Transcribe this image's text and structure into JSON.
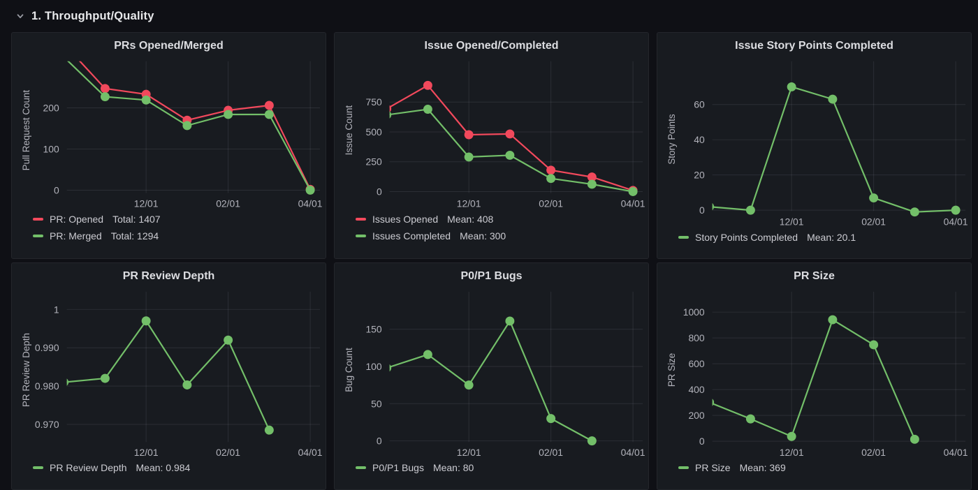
{
  "header": {
    "title": "1. Throughput/Quality",
    "collapse_icon": "chevron-down"
  },
  "colors": {
    "page_bg": "#0f1015",
    "panel_bg": "#181b20",
    "panel_border": "#24262c",
    "grid": "rgba(204,204,220,0.11)",
    "tick_text": "#b2b3bb",
    "axis_label": "#b2b3bb",
    "title_text": "#dcdde1",
    "legend_text": "#ccccd2",
    "header_text": "#e8e9eb",
    "red": "#F2495C",
    "green": "#73BF69"
  },
  "chart_data": [
    {
      "type": "line",
      "title": "PRs Opened/Merged",
      "ylabel": "Pull Request Count",
      "x_unit": "months_since_10_01",
      "x_ticks": [
        {
          "t": 2,
          "label": "12/01"
        },
        {
          "t": 4,
          "label": "02/01"
        },
        {
          "t": 6,
          "label": "04/01"
        }
      ],
      "y_ticks": [
        {
          "v": 0,
          "label": "0"
        },
        {
          "v": 100,
          "label": "100"
        },
        {
          "v": 200,
          "label": "200"
        }
      ],
      "y_range": [
        -7,
        298
      ],
      "legend_position": "bottom-left",
      "series": [
        {
          "name": "PR: Opened",
          "color_key": "red",
          "stat_label": "Total: 1407",
          "points": [
            [
              0,
              355
            ],
            [
              1,
              247
            ],
            [
              2,
              233
            ],
            [
              3,
              170
            ],
            [
              4,
              194
            ],
            [
              5,
              206
            ],
            [
              6,
              2
            ]
          ]
        },
        {
          "name": "PR: Merged",
          "color_key": "green",
          "stat_label": "Total: 1294",
          "points": [
            [
              0,
              323
            ],
            [
              1,
              227
            ],
            [
              2,
              219
            ],
            [
              3,
              157
            ],
            [
              4,
              184
            ],
            [
              5,
              184
            ],
            [
              6,
              0
            ]
          ]
        }
      ]
    },
    {
      "type": "line",
      "title": "Issue Opened/Completed",
      "ylabel": "Issue Count",
      "x_unit": "months_since_10_01",
      "x_ticks": [
        {
          "t": 2,
          "label": "12/01"
        },
        {
          "t": 4,
          "label": "02/01"
        },
        {
          "t": 6,
          "label": "04/01"
        }
      ],
      "y_ticks": [
        {
          "v": 0,
          "label": "0"
        },
        {
          "v": 250,
          "label": "250"
        },
        {
          "v": 500,
          "label": "500"
        },
        {
          "v": 750,
          "label": "750"
        }
      ],
      "y_range": [
        -12,
        1040
      ],
      "legend_position": "bottom-left",
      "series": [
        {
          "name": "Issues Opened",
          "color_key": "red",
          "stat_label": "Mean: 408",
          "points": [
            [
              0,
              694
            ],
            [
              1,
              890
            ],
            [
              2,
              477
            ],
            [
              3,
              483
            ],
            [
              4,
              180
            ],
            [
              5,
              122
            ],
            [
              6,
              10
            ]
          ]
        },
        {
          "name": "Issues Completed",
          "color_key": "green",
          "stat_label": "Mean: 300",
          "points": [
            [
              0,
              643
            ],
            [
              1,
              690
            ],
            [
              2,
              290
            ],
            [
              3,
              305
            ],
            [
              4,
              110
            ],
            [
              5,
              62
            ],
            [
              6,
              0
            ]
          ]
        }
      ]
    },
    {
      "type": "line",
      "title": "Issue Story Points Completed",
      "ylabel": "Story Points",
      "x_unit": "months_since_10_01",
      "x_ticks": [
        {
          "t": 2,
          "label": "12/01"
        },
        {
          "t": 4,
          "label": "02/01"
        },
        {
          "t": 6,
          "label": "04/01"
        }
      ],
      "y_ticks": [
        {
          "v": 0,
          "label": "0"
        },
        {
          "v": 20,
          "label": "20"
        },
        {
          "v": 40,
          "label": "40"
        },
        {
          "v": 60,
          "label": "60"
        }
      ],
      "y_range": [
        -0.5,
        81
      ],
      "legend_position": "bottom-left",
      "series": [
        {
          "name": "Story Points Completed",
          "color_key": "green",
          "stat_label": "Mean: 20.1",
          "points": [
            [
              0,
              2
            ],
            [
              1,
              0
            ],
            [
              2,
              70
            ],
            [
              3,
              63
            ],
            [
              4,
              7
            ],
            [
              5,
              -1
            ],
            [
              6,
              0
            ]
          ]
        }
      ]
    },
    {
      "type": "line",
      "title": "PR Review Depth",
      "ylabel": "PR Review Depth",
      "x_unit": "months_since_10_01",
      "x_ticks": [
        {
          "t": 2,
          "label": "12/01"
        },
        {
          "t": 4,
          "label": "02/01"
        },
        {
          "t": 6,
          "label": "04/01"
        }
      ],
      "y_ticks": [
        {
          "v": 0.97,
          "label": "0.970"
        },
        {
          "v": 0.98,
          "label": "0.980"
        },
        {
          "v": 0.99,
          "label": "0.990"
        },
        {
          "v": 1,
          "label": "1"
        }
      ],
      "y_range": [
        0.9654,
        1.003
      ],
      "legend_position": "bottom-left",
      "series": [
        {
          "name": "PR Review Depth",
          "color_key": "green",
          "stat_label": "Mean: 0.984",
          "points": [
            [
              0,
              0.981
            ],
            [
              1,
              0.982
            ],
            [
              2,
              0.997
            ],
            [
              3,
              0.9803
            ],
            [
              4,
              0.992
            ],
            [
              5,
              0.9685
            ]
          ]
        }
      ]
    },
    {
      "type": "line",
      "title": "P0/P1 Bugs",
      "ylabel": "Bug Count",
      "x_unit": "months_since_10_01",
      "x_ticks": [
        {
          "t": 2,
          "label": "12/01"
        },
        {
          "t": 4,
          "label": "02/01"
        },
        {
          "t": 6,
          "label": "04/01"
        }
      ],
      "y_ticks": [
        {
          "v": 0,
          "label": "0"
        },
        {
          "v": 50,
          "label": "50"
        },
        {
          "v": 100,
          "label": "100"
        },
        {
          "v": 150,
          "label": "150"
        }
      ],
      "y_range": [
        -1.5,
        192
      ],
      "legend_position": "bottom-left",
      "series": [
        {
          "name": "P0/P1 Bugs",
          "color_key": "green",
          "stat_label": "Mean: 80",
          "points": [
            [
              0,
              98
            ],
            [
              1,
              116
            ],
            [
              2,
              75
            ],
            [
              3,
              161
            ],
            [
              4,
              30
            ],
            [
              5,
              0
            ]
          ]
        }
      ]
    },
    {
      "type": "line",
      "title": "PR Size",
      "ylabel": "PR Size",
      "x_unit": "months_since_10_01",
      "x_ticks": [
        {
          "t": 2,
          "label": "12/01"
        },
        {
          "t": 4,
          "label": "02/01"
        },
        {
          "t": 6,
          "label": "04/01"
        }
      ],
      "y_ticks": [
        {
          "v": 0,
          "label": "0"
        },
        {
          "v": 200,
          "label": "200"
        },
        {
          "v": 400,
          "label": "400"
        },
        {
          "v": 600,
          "label": "600"
        },
        {
          "v": 800,
          "label": "800"
        },
        {
          "v": 1000,
          "label": "1000"
        }
      ],
      "y_range": [
        -6,
        1110
      ],
      "legend_position": "bottom-left",
      "series": [
        {
          "name": "PR Size",
          "color_key": "green",
          "stat_label": "Mean: 369",
          "points": [
            [
              0,
              301
            ],
            [
              1,
              173
            ],
            [
              2,
              37
            ],
            [
              3,
              941
            ],
            [
              4,
              747
            ],
            [
              5,
              15
            ]
          ]
        }
      ]
    }
  ]
}
